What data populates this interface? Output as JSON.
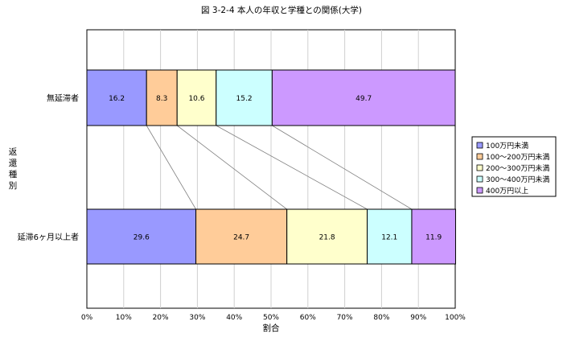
{
  "chart_data": {
    "type": "bar",
    "orientation": "horizontal",
    "stacked": "percent",
    "title": "図 3-2-4  本人の年収と学種との関係(大学)",
    "xlabel": "割合",
    "ylabel": "返還種別",
    "xlim": [
      0,
      100
    ],
    "x_ticks": [
      "0%",
      "10%",
      "20%",
      "30%",
      "40%",
      "50%",
      "60%",
      "70%",
      "80%",
      "90%",
      "100%"
    ],
    "categories": [
      "無延滞者",
      "延滞6ヶ月以上者"
    ],
    "series": [
      {
        "name": "100万円未満",
        "values": [
          16.2,
          29.6
        ],
        "color": "#9999ff"
      },
      {
        "name": "100～200万円未満",
        "values": [
          8.3,
          24.7
        ],
        "color": "#ffcc99"
      },
      {
        "name": "200～300万円未満",
        "values": [
          10.6,
          21.8
        ],
        "color": "#ffffcc"
      },
      {
        "name": "300～400万円未満",
        "values": [
          15.2,
          12.1
        ],
        "color": "#ccffff"
      },
      {
        "name": "400万円以上",
        "values": [
          49.7,
          11.9
        ],
        "color": "#cc99ff"
      }
    ],
    "legend_position": "right",
    "grid": true,
    "series_lines": true
  }
}
